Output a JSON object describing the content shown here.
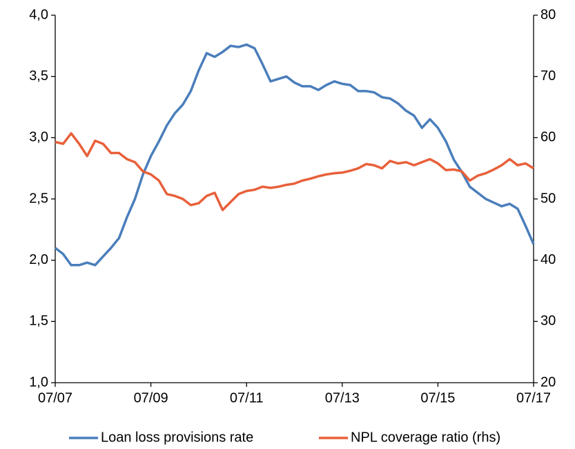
{
  "chart_data": {
    "type": "line",
    "categories": [
      "07/07",
      null,
      null,
      null,
      null,
      null,
      null,
      null,
      null,
      null,
      null,
      null,
      "07/09",
      null,
      null,
      null,
      null,
      null,
      null,
      null,
      null,
      null,
      null,
      null,
      "07/11",
      null,
      null,
      null,
      null,
      null,
      null,
      null,
      null,
      null,
      null,
      null,
      "07/13",
      null,
      null,
      null,
      null,
      null,
      null,
      null,
      null,
      null,
      null,
      null,
      "07/15",
      null,
      null,
      null,
      null,
      null,
      null,
      null,
      null,
      null,
      null,
      null,
      "07/17"
    ],
    "series": [
      {
        "name": "Loan loss provisions rate",
        "color": "#4a7ebb",
        "axis": "y",
        "values": [
          2.1,
          2.05,
          1.96,
          1.96,
          1.98,
          1.96,
          2.03,
          2.1,
          2.18,
          2.35,
          2.5,
          2.7,
          2.85,
          2.97,
          3.1,
          3.2,
          3.27,
          3.38,
          3.55,
          3.69,
          3.66,
          3.7,
          3.75,
          3.74,
          3.76,
          3.73,
          3.6,
          3.46,
          3.48,
          3.5,
          3.45,
          3.42,
          3.42,
          3.39,
          3.43,
          3.46,
          3.44,
          3.43,
          3.38,
          3.38,
          3.37,
          3.33,
          3.32,
          3.28,
          3.22,
          3.18,
          3.08,
          3.15,
          3.08,
          2.97,
          2.82,
          2.72,
          2.6,
          2.55,
          2.5,
          2.47,
          2.44,
          2.46,
          2.42,
          2.28,
          2.13
        ]
      },
      {
        "name": "NPL coverage ratio (rhs)",
        "color": "#e8603a",
        "axis": "y2",
        "values": [
          59.3,
          59.0,
          60.7,
          59.0,
          57.0,
          59.5,
          59.0,
          57.5,
          57.5,
          56.5,
          56.0,
          54.5,
          54.0,
          53.0,
          50.8,
          50.5,
          50.0,
          49.0,
          49.3,
          50.5,
          51.0,
          48.2,
          49.5,
          50.8,
          51.3,
          51.5,
          52.0,
          51.8,
          52.0,
          52.3,
          52.5,
          53.0,
          53.3,
          53.7,
          54.0,
          54.2,
          54.3,
          54.6,
          55.0,
          55.7,
          55.5,
          55.0,
          56.2,
          55.8,
          56.0,
          55.5,
          56.0,
          56.5,
          55.8,
          54.7,
          54.8,
          54.5,
          53.0,
          53.8,
          54.2,
          54.8,
          55.5,
          56.5,
          55.5,
          55.8,
          55.0
        ]
      }
    ],
    "ylim": [
      1.0,
      4.0
    ],
    "yticks": [
      {
        "value": 1.0,
        "label": "1,0"
      },
      {
        "value": 1.5,
        "label": "1,5"
      },
      {
        "value": 2.0,
        "label": "2,0"
      },
      {
        "value": 2.5,
        "label": "2,5"
      },
      {
        "value": 3.0,
        "label": "3,0"
      },
      {
        "value": 3.5,
        "label": "3,5"
      },
      {
        "value": 4.0,
        "label": "4,0"
      }
    ],
    "y2lim": [
      20,
      80
    ],
    "y2ticks": [
      20,
      30,
      40,
      50,
      60,
      70,
      80
    ],
    "legend": "bottom"
  }
}
